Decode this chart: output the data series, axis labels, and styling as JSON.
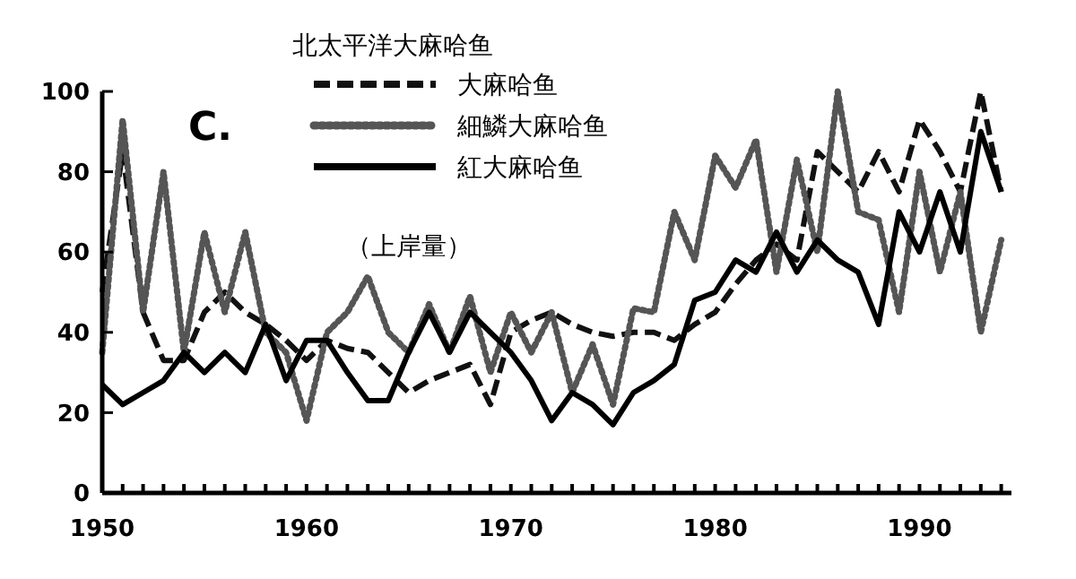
{
  "chart_data": {
    "type": "line",
    "legend_title": "北太平洋大麻哈鱼",
    "annotations": [
      "C.",
      "（上岸量）"
    ],
    "x": [
      1950,
      1951,
      1952,
      1953,
      1954,
      1955,
      1956,
      1957,
      1958,
      1959,
      1960,
      1961,
      1962,
      1963,
      1964,
      1965,
      1966,
      1967,
      1968,
      1969,
      1970,
      1971,
      1972,
      1973,
      1974,
      1975,
      1976,
      1977,
      1978,
      1979,
      1980,
      1981,
      1982,
      1983,
      1984,
      1985,
      1986,
      1987,
      1988,
      1989,
      1990,
      1991,
      1992,
      1993,
      1994
    ],
    "series": [
      {
        "name": "大麻哈鱼",
        "color": "#111111",
        "line_style": "dashed",
        "values": [
          50,
          85,
          45,
          33,
          33,
          45,
          50,
          45,
          42,
          38,
          33,
          38,
          36,
          35,
          30,
          25,
          28,
          30,
          32,
          22,
          40,
          43,
          45,
          42,
          40,
          39,
          40,
          40,
          38,
          42,
          45,
          52,
          58,
          62,
          58,
          85,
          80,
          75,
          85,
          75,
          93,
          85,
          75,
          100,
          75
        ]
      },
      {
        "name": "細鱗大麻哈鱼",
        "color": "#555555",
        "line_style": "dotted",
        "values": [
          35,
          93,
          45,
          80,
          35,
          65,
          45,
          65,
          40,
          35,
          18,
          40,
          45,
          54,
          40,
          35,
          47,
          35,
          49,
          30,
          45,
          35,
          45,
          25,
          37,
          22,
          46,
          45,
          70,
          58,
          84,
          76,
          88,
          55,
          83,
          60,
          100,
          70,
          68,
          45,
          80,
          55,
          75,
          40,
          63
        ]
      },
      {
        "name": "紅大麻哈鱼",
        "color": "#000000",
        "line_style": "solid",
        "values": [
          27,
          22,
          25,
          28,
          35,
          30,
          35,
          30,
          42,
          28,
          38,
          38,
          30,
          23,
          23,
          35,
          45,
          35,
          45,
          40,
          35,
          28,
          18,
          25,
          22,
          17,
          25,
          28,
          32,
          48,
          50,
          58,
          55,
          65,
          55,
          63,
          58,
          55,
          42,
          70,
          60,
          75,
          60,
          90,
          75
        ]
      }
    ],
    "xlim": [
      1950,
      1994.5
    ],
    "ylim": [
      0,
      100
    ],
    "xticks": [
      1950,
      {
        "value": 1951,
        "label": null
      },
      {
        "value": 1952,
        "label": null
      },
      {
        "value": 1953,
        "label": null
      },
      {
        "value": 1954,
        "label": null
      },
      {
        "value": 1955,
        "label": null
      },
      {
        "value": 1956,
        "label": null
      },
      {
        "value": 1957,
        "label": null
      },
      {
        "value": 1958,
        "label": null
      },
      {
        "value": 1959,
        "label": null
      },
      1960,
      {
        "value": 1961,
        "label": null
      },
      {
        "value": 1962,
        "label": null
      },
      {
        "value": 1963,
        "label": null
      },
      {
        "value": 1964,
        "label": null
      },
      {
        "value": 1965,
        "label": null
      },
      {
        "value": 1966,
        "label": null
      },
      {
        "value": 1967,
        "label": null
      },
      {
        "value": 1968,
        "label": null
      },
      {
        "value": 1969,
        "label": null
      },
      1970,
      {
        "value": 1971,
        "label": null
      },
      {
        "value": 1972,
        "label": null
      },
      {
        "value": 1973,
        "label": null
      },
      {
        "value": 1974,
        "label": null
      },
      {
        "value": 1975,
        "label": null
      },
      {
        "value": 1976,
        "label": null
      },
      {
        "value": 1977,
        "label": null
      },
      {
        "value": 1978,
        "label": null
      },
      {
        "value": 1979,
        "label": null
      },
      1980,
      {
        "value": 1981,
        "label": null
      },
      {
        "value": 1982,
        "label": null
      },
      {
        "value": 1983,
        "label": null
      },
      {
        "value": 1984,
        "label": null
      },
      {
        "value": 1985,
        "label": null
      },
      {
        "value": 1986,
        "label": null
      },
      {
        "value": 1987,
        "label": null
      },
      {
        "value": 1988,
        "label": null
      },
      {
        "value": 1989,
        "label": null
      },
      1990,
      {
        "value": 1991,
        "label": null
      },
      {
        "value": 1992,
        "label": null
      },
      {
        "value": 1993,
        "label": null
      },
      {
        "value": 1994,
        "label": null
      }
    ],
    "yticks": [
      0,
      20,
      40,
      60,
      80,
      100
    ],
    "grid": false,
    "legend": "top",
    "marker": "none"
  }
}
